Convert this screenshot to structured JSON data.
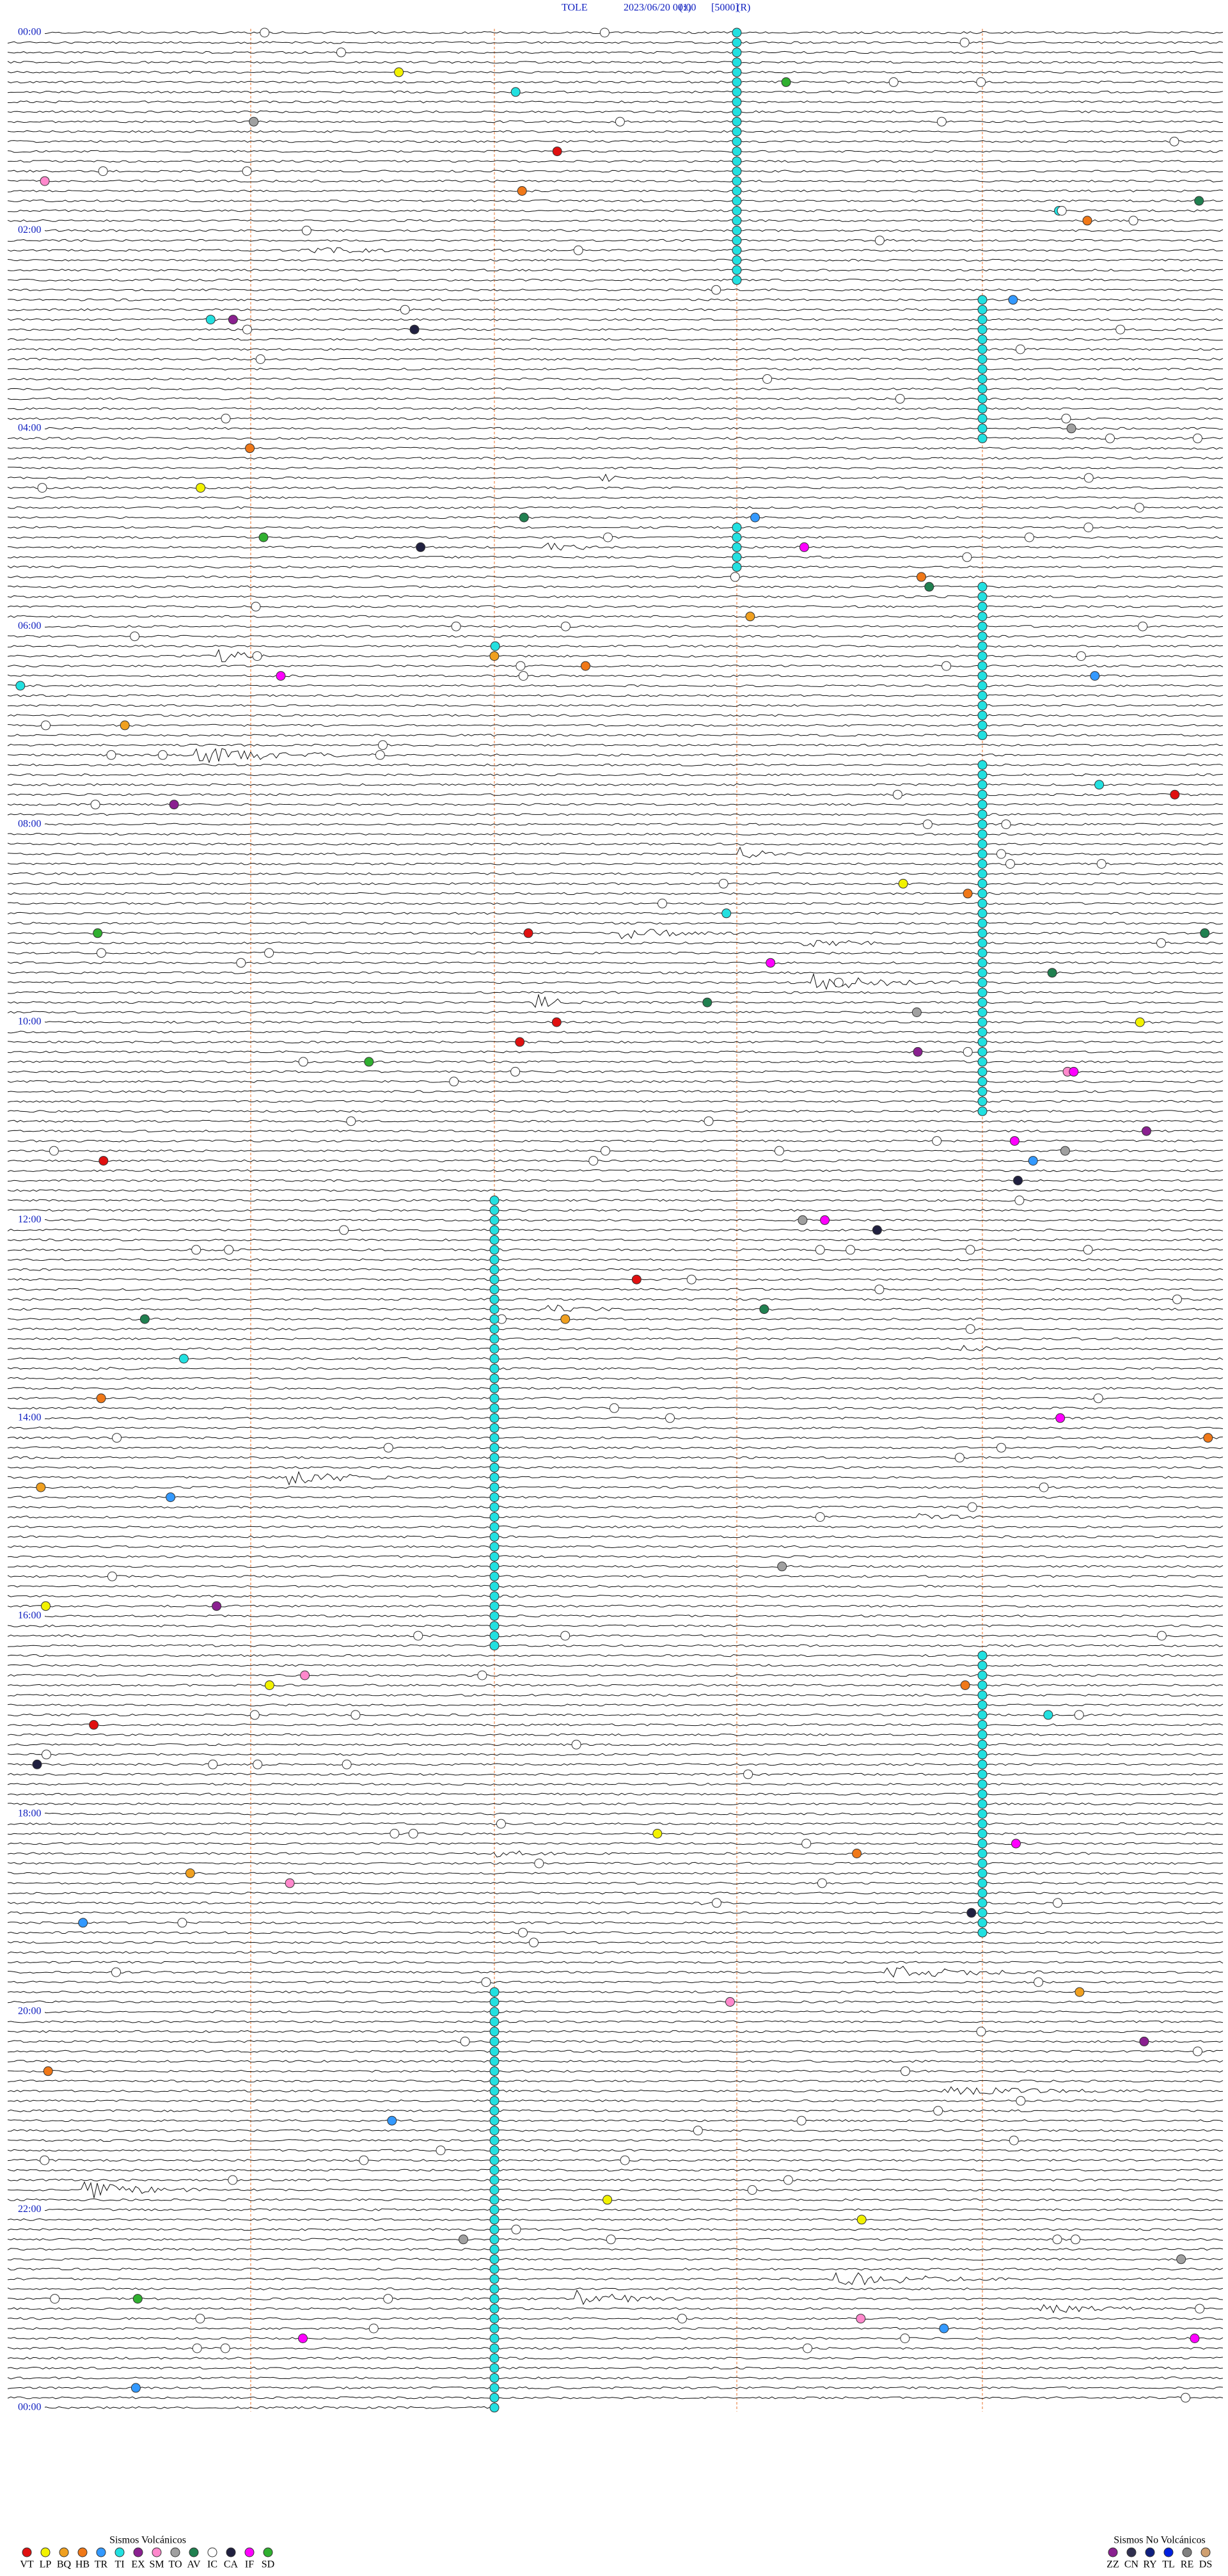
{
  "header": {
    "station": "TOLE",
    "datetime": "2023/06/20 00:00",
    "channel": "(1)",
    "scale": "[5000]",
    "mode": "(R)"
  },
  "time_labels": [
    "00:00",
    "02:00",
    "04:00",
    "06:00",
    "08:00",
    "10:00",
    "12:00",
    "14:00",
    "16:00",
    "18:00",
    "20:00",
    "22:00",
    "00:00"
  ],
  "legend_volcanic": {
    "title": "Sismos Volcánicos",
    "items": [
      {
        "code": "VT",
        "color": "#e01010"
      },
      {
        "code": "LP",
        "color": "#f2f200"
      },
      {
        "code": "BQ",
        "color": "#f0a020"
      },
      {
        "code": "HB",
        "color": "#f07818"
      },
      {
        "code": "TR",
        "color": "#3399ff"
      },
      {
        "code": "TI",
        "color": "#22e0e0"
      },
      {
        "code": "EX",
        "color": "#8a2090"
      },
      {
        "code": "SM",
        "color": "#ff88cc"
      },
      {
        "code": "TO",
        "color": "#a0a0a0"
      },
      {
        "code": "AV",
        "color": "#208050"
      },
      {
        "code": "IC",
        "color": "#ffffff"
      },
      {
        "code": "CA",
        "color": "#202040"
      },
      {
        "code": "IF",
        "color": "#ff00ff"
      },
      {
        "code": "SD",
        "color": "#30b030"
      }
    ]
  },
  "legend_non_volcanic": {
    "title": "Sismos No Volcánicos",
    "items": [
      {
        "code": "ZZ",
        "color": "#8a2090"
      },
      {
        "code": "CN",
        "color": "#303050"
      },
      {
        "code": "RY",
        "color": "#102080"
      },
      {
        "code": "TL",
        "color": "#0020e0"
      },
      {
        "code": "RE",
        "color": "#808080"
      },
      {
        "code": "DS",
        "color": "#d0a070"
      }
    ]
  }
}
